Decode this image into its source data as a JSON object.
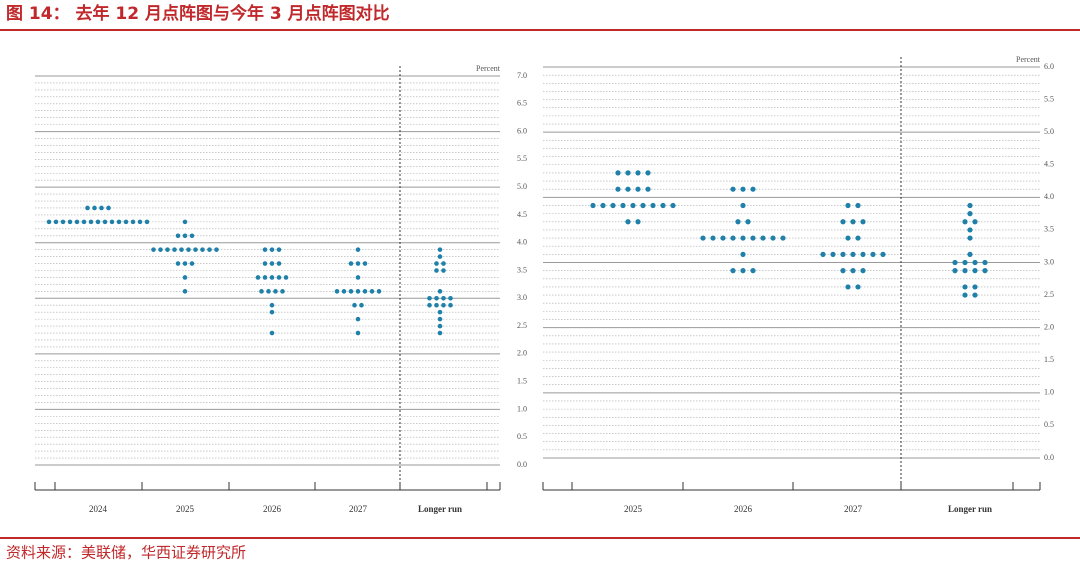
{
  "title": "图 14：  去年 12 月点阵图与今年 3 月点阵图对比",
  "source": "资料来源：美联储，华西证券研究所",
  "chart_data": [
    {
      "type": "dot",
      "y_label": "Percent",
      "color": "#1f80aa",
      "categories": [
        "2024",
        "2025",
        "2026",
        "2027",
        "Longer run"
      ],
      "dots": [
        [
          4.625,
          4.625,
          4.625,
          4.625,
          4.375,
          4.375,
          4.375,
          4.375,
          4.375,
          4.375,
          4.375,
          4.375,
          4.375,
          4.375,
          4.375,
          4.375,
          4.375,
          4.375,
          4.375
        ],
        [
          4.375,
          4.125,
          4.125,
          4.125,
          3.875,
          3.875,
          3.875,
          3.875,
          3.875,
          3.875,
          3.875,
          3.875,
          3.875,
          3.875,
          3.625,
          3.625,
          3.625,
          3.375,
          3.125
        ],
        [
          3.875,
          3.875,
          3.875,
          3.625,
          3.625,
          3.625,
          3.375,
          3.375,
          3.375,
          3.375,
          3.375,
          3.125,
          3.125,
          3.125,
          3.125,
          2.875,
          2.75,
          2.375
        ],
        [
          3.875,
          3.625,
          3.625,
          3.625,
          3.375,
          3.125,
          3.125,
          3.125,
          3.125,
          3.125,
          3.125,
          3.125,
          2.875,
          2.875,
          2.625,
          2.375
        ],
        [
          3.875,
          3.75,
          3.625,
          3.625,
          3.5,
          3.5,
          3.125,
          3,
          3,
          3,
          3,
          2.875,
          2.875,
          2.875,
          2.875,
          2.75,
          2.625,
          2.5,
          2.375
        ]
      ],
      "ylim": [
        0,
        7
      ],
      "yticks": [
        {
          "value": 0,
          "label": "0.0"
        },
        {
          "value": 0.5,
          "label": "0.5"
        },
        {
          "value": 1,
          "label": "1.0"
        },
        {
          "value": 1.5,
          "label": "1.5"
        },
        {
          "value": 2,
          "label": "2.0"
        },
        {
          "value": 2.5,
          "label": "2.5"
        },
        {
          "value": 3,
          "label": "3.0"
        },
        {
          "value": 3.5,
          "label": "3.5"
        },
        {
          "value": 4,
          "label": "4.0"
        },
        {
          "value": 4.5,
          "label": "4.5"
        },
        {
          "value": 5,
          "label": "5.0"
        },
        {
          "value": 5.5,
          "label": "5.5"
        },
        {
          "value": 6,
          "label": "6.0"
        },
        {
          "value": 6.5,
          "label": "6.5"
        },
        {
          "value": 7,
          "label": "7.0"
        }
      ]
    },
    {
      "type": "dot",
      "y_label": "Percent",
      "color": "#1f80aa",
      "categories": [
        "2025",
        "2026",
        "2027",
        "Longer run"
      ],
      "dots": [
        [
          4.375,
          4.375,
          4.375,
          4.375,
          4.125,
          4.125,
          4.125,
          4.125,
          3.875,
          3.875,
          3.875,
          3.875,
          3.875,
          3.875,
          3.875,
          3.875,
          3.875,
          3.625,
          3.625
        ],
        [
          4.125,
          4.125,
          4.125,
          3.875,
          3.625,
          3.625,
          3.375,
          3.375,
          3.375,
          3.375,
          3.375,
          3.375,
          3.375,
          3.375,
          3.375,
          3.125,
          2.875,
          2.875,
          2.875
        ],
        [
          3.875,
          3.875,
          3.625,
          3.625,
          3.625,
          3.375,
          3.375,
          3.125,
          3.125,
          3.125,
          3.125,
          3.125,
          3.125,
          3.125,
          2.875,
          2.875,
          2.875,
          2.625,
          2.625
        ],
        [
          3.875,
          3.75,
          3.625,
          3.625,
          3.5,
          3.375,
          3.125,
          3,
          3,
          3,
          3,
          2.875,
          2.875,
          2.875,
          2.875,
          2.625,
          2.625,
          2.5,
          2.5
        ]
      ],
      "ylim": [
        0,
        6
      ],
      "yticks": [
        {
          "value": 0,
          "label": "0.0"
        },
        {
          "value": 0.5,
          "label": "0.5"
        },
        {
          "value": 1,
          "label": "1.0"
        },
        {
          "value": 1.5,
          "label": "1.5"
        },
        {
          "value": 2,
          "label": "2.0"
        },
        {
          "value": 2.5,
          "label": "2.5"
        },
        {
          "value": 3,
          "label": "3.0"
        },
        {
          "value": 3.5,
          "label": "3.5"
        },
        {
          "value": 4,
          "label": "4.0"
        },
        {
          "value": 4.5,
          "label": "4.5"
        },
        {
          "value": 5,
          "label": "5.0"
        },
        {
          "value": 5.5,
          "label": "5.5"
        },
        {
          "value": 6,
          "label": "6.0"
        }
      ]
    }
  ]
}
